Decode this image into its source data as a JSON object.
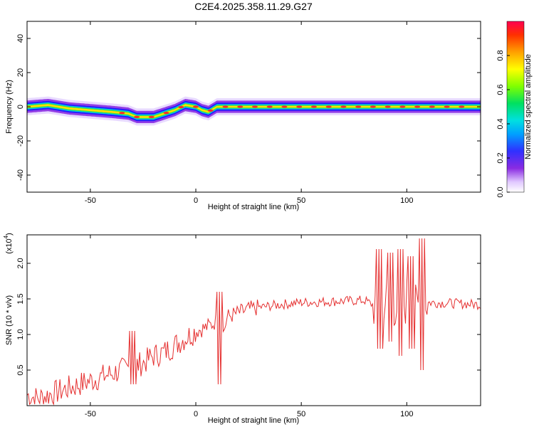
{
  "title": "C2E4.2025.358.11.29.G27",
  "chart_data": [
    {
      "type": "heatmap",
      "xlabel": "Height of straight line (km)",
      "ylabel": "Frequency (Hz)",
      "xlim": [
        -80,
        135
      ],
      "ylim": [
        -50,
        50
      ],
      "xticks": [
        "-50",
        "0",
        "50",
        "100"
      ],
      "yticks": [
        "-40",
        "-20",
        "0",
        "20",
        "40"
      ],
      "colorbar": {
        "label": "Normalized spectral amplitude",
        "ticks": [
          "0.0",
          "0.2",
          "0.4",
          "0.6",
          "0.8"
        ],
        "range": [
          0,
          1
        ]
      },
      "ridge": {
        "x": [
          -80,
          -70,
          -60,
          -50,
          -40,
          -32,
          -28,
          -20,
          -15,
          -10,
          -5,
          0,
          3,
          6,
          10,
          20,
          40,
          60,
          80,
          100,
          108,
          135
        ],
        "freq": [
          0,
          1,
          -1,
          -2,
          -3,
          -4,
          -6,
          -6,
          -4,
          -2,
          1,
          0,
          -2,
          -3,
          0,
          0,
          0,
          0,
          0,
          0,
          0,
          0
        ]
      }
    },
    {
      "type": "line",
      "xlabel": "Height of straight line (km)",
      "ylabel": "SNR (10 * v/v)",
      "yscale_label": "(x10",
      "yscale_exp": "4",
      "yscale_close": ")",
      "xlim": [
        -80,
        135
      ],
      "ylim": [
        0,
        2.4
      ],
      "xticks": [
        "-50",
        "0",
        "50",
        "100"
      ],
      "yticks": [
        "0.5",
        "1.0",
        "1.5",
        "2.0"
      ],
      "series": [
        {
          "color": "#e53030",
          "x": [
            -80,
            -75,
            -70,
            -65,
            -60,
            -55,
            -50,
            -45,
            -40,
            -35,
            -30,
            -25,
            -20,
            -15,
            -10,
            -5,
            0,
            5,
            8,
            10,
            12,
            15,
            20,
            25,
            30,
            40,
            50,
            60,
            70,
            80,
            85,
            90,
            95,
            100,
            105,
            108,
            110,
            120,
            135
          ],
          "y": [
            0.15,
            0.1,
            0.15,
            0.2,
            0.25,
            0.3,
            0.35,
            0.4,
            0.45,
            0.5,
            0.55,
            0.6,
            0.7,
            0.75,
            0.85,
            0.95,
            1.05,
            1.1,
            1.15,
            1.2,
            0.9,
            1.25,
            1.3,
            1.35,
            1.38,
            1.42,
            1.45,
            1.46,
            1.47,
            1.48,
            1.4,
            1.5,
            1.4,
            1.45,
            1.35,
            1.5,
            1.45,
            1.44,
            1.42
          ],
          "spikes": [
            {
              "x": -30,
              "min": 0.3,
              "max": 1.05
            },
            {
              "x": 11,
              "min": 0.3,
              "max": 1.6
            },
            {
              "x": 87,
              "min": 0.8,
              "max": 2.2
            },
            {
              "x": 92,
              "min": 0.9,
              "max": 2.15
            },
            {
              "x": 97,
              "min": 0.7,
              "max": 2.2
            },
            {
              "x": 102,
              "min": 0.8,
              "max": 2.1
            },
            {
              "x": 107,
              "min": 0.5,
              "max": 2.35
            }
          ]
        }
      ]
    }
  ]
}
